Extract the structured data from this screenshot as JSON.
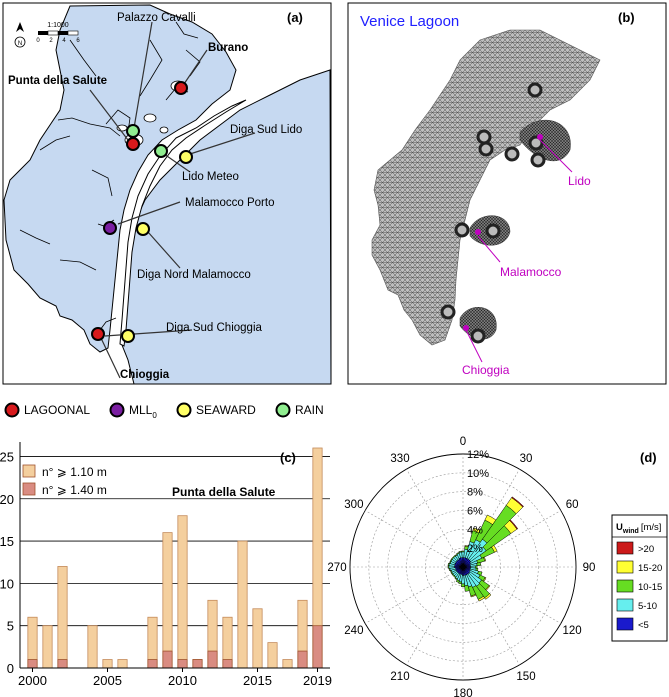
{
  "panel_a": {
    "label": "(a)",
    "scale_text": "1:1000",
    "scale_ticks": [
      "0",
      "2",
      "4",
      "6"
    ],
    "north": "N",
    "stations": [
      {
        "name": "Burano",
        "bold": true,
        "type": "lagoonal"
      },
      {
        "name": "Palazzo Cavalli",
        "bold": false,
        "type": "rain"
      },
      {
        "name": "Punta della Salute",
        "bold": true,
        "type": "lagoonal"
      },
      {
        "name": "Diga Sud Lido",
        "bold": false,
        "type": "seaward"
      },
      {
        "name": "Lido Meteo",
        "bold": false,
        "type": "rain"
      },
      {
        "name": "Malamocco Porto",
        "bold": false,
        "type": "mll0"
      },
      {
        "name": "Diga Nord Malamocco",
        "bold": false,
        "type": "seaward"
      },
      {
        "name": "Diga Sud Chioggia",
        "bold": false,
        "type": "seaward"
      },
      {
        "name": "Chioggia",
        "bold": true,
        "type": "lagoonal"
      }
    ]
  },
  "panel_b": {
    "label": "(b)",
    "title": "Venice Lagoon",
    "inlets": [
      "Lido",
      "Malamocco",
      "Chioggia"
    ]
  },
  "legend": [
    {
      "label": "LAGOONAL",
      "sub": "",
      "color": "#d7191c"
    },
    {
      "label": "MLL",
      "sub": "0",
      "color": "#7b1fa2"
    },
    {
      "label": "SEAWARD",
      "sub": "",
      "color": "#ffff66"
    },
    {
      "label": "RAIN",
      "sub": "",
      "color": "#90ee90"
    }
  ],
  "colors": {
    "water": "#c6d9f1",
    "outline": "#000000",
    "bar1": "#f4cf9e",
    "bar2": "#d98c82",
    "inlet_label": "#c000c0",
    "title_blue": "#2020ff"
  },
  "chart_data": [
    {
      "type": "bar",
      "label": "(c)",
      "title": "Punta della Salute",
      "categories": [
        "2000",
        "2001",
        "2002",
        "2003",
        "2004",
        "2005",
        "2006",
        "2007",
        "2008",
        "2009",
        "2010",
        "2011",
        "2012",
        "2013",
        "2014",
        "2015",
        "2016",
        "2017",
        "2018",
        "2019"
      ],
      "xtick_labels": [
        "2000",
        "2005",
        "2010",
        "2015",
        "2019"
      ],
      "ytick_labels": [
        "0",
        "5",
        "10",
        "15",
        "20",
        "25"
      ],
      "ylim": [
        0,
        26
      ],
      "grid": true,
      "legend_position": "top-left",
      "series": [
        {
          "name": "n° ⩾ 1.10 m",
          "values": [
            6,
            5,
            12,
            0,
            5,
            1,
            1,
            0,
            6,
            16,
            18,
            1,
            8,
            6,
            15,
            7,
            3,
            1,
            8,
            26
          ]
        },
        {
          "name": "n° ⩾ 1.40 m",
          "values": [
            1,
            0,
            1,
            0,
            0,
            0,
            0,
            0,
            1,
            2,
            1,
            1,
            2,
            1,
            0,
            0,
            0,
            0,
            2,
            5
          ]
        }
      ]
    },
    {
      "type": "polar-bar",
      "label": "(d)",
      "angle_labels": [
        "0",
        "30",
        "60",
        "90",
        "120",
        "150",
        "180",
        "210",
        "240",
        "270",
        "300",
        "330"
      ],
      "radial_labels": [
        "2%",
        "4%",
        "6%",
        "8%",
        "10%",
        "12%"
      ],
      "rmax": 12,
      "legend_title": "U",
      "legend_title_sub": "wind",
      "legend_unit": "[m/s]",
      "bins": [
        {
          "label": ">20",
          "color": "#cc1a1a"
        },
        {
          "label": "15-20",
          "color": "#ffff33"
        },
        {
          "label": "10-15",
          "color": "#66dd22"
        },
        {
          "label": "5-10",
          "color": "#66eeee"
        },
        {
          "label": "<5",
          "color": "#1a1acc"
        }
      ],
      "sectors": [
        {
          "dir": 0,
          "values": [
            0,
            0,
            0.1,
            0.6,
            1.0
          ]
        },
        {
          "dir": 10,
          "values": [
            0,
            0.1,
            0.3,
            0.9,
            1.0
          ]
        },
        {
          "dir": 20,
          "values": [
            0,
            0.3,
            1.2,
            1.8,
            1.0
          ]
        },
        {
          "dir": 30,
          "values": [
            0,
            0.6,
            2.3,
            2.2,
            1.0
          ]
        },
        {
          "dir": 40,
          "values": [
            0.1,
            1.0,
            4.4,
            2.6,
            1.0
          ]
        },
        {
          "dir": 50,
          "values": [
            0.1,
            0.8,
            3.2,
            2.0,
            1.0
          ]
        },
        {
          "dir": 60,
          "values": [
            0,
            0.3,
            1.5,
            1.3,
            0.9
          ]
        },
        {
          "dir": 70,
          "values": [
            0,
            0.1,
            0.8,
            0.8,
            0.8
          ]
        },
        {
          "dir": 80,
          "values": [
            0,
            0,
            0.4,
            0.7,
            0.8
          ]
        },
        {
          "dir": 90,
          "values": [
            0,
            0,
            0.2,
            0.5,
            0.8
          ]
        },
        {
          "dir": 100,
          "values": [
            0,
            0,
            0.2,
            0.6,
            0.8
          ]
        },
        {
          "dir": 110,
          "values": [
            0,
            0,
            0.4,
            0.9,
            0.8
          ]
        },
        {
          "dir": 120,
          "values": [
            0,
            0.1,
            0.6,
            1.2,
            0.8
          ]
        },
        {
          "dir": 130,
          "values": [
            0,
            0.1,
            1.0,
            1.5,
            0.9
          ]
        },
        {
          "dir": 140,
          "values": [
            0,
            0.2,
            1.5,
            1.6,
            0.9
          ]
        },
        {
          "dir": 150,
          "values": [
            0,
            0.2,
            1.4,
            1.5,
            0.9
          ]
        },
        {
          "dir": 160,
          "values": [
            0,
            0.1,
            1.0,
            1.3,
            0.9
          ]
        },
        {
          "dir": 170,
          "values": [
            0,
            0,
            0.6,
            1.1,
            0.9
          ]
        },
        {
          "dir": 180,
          "values": [
            0,
            0,
            0.3,
            0.9,
            0.9
          ]
        },
        {
          "dir": 190,
          "values": [
            0,
            0,
            0.2,
            0.8,
            0.8
          ]
        },
        {
          "dir": 200,
          "values": [
            0,
            0,
            0.2,
            0.7,
            0.8
          ]
        },
        {
          "dir": 210,
          "values": [
            0,
            0,
            0.1,
            0.6,
            0.8
          ]
        },
        {
          "dir": 220,
          "values": [
            0,
            0,
            0.1,
            0.5,
            0.8
          ]
        },
        {
          "dir": 230,
          "values": [
            0,
            0,
            0.1,
            0.5,
            0.8
          ]
        },
        {
          "dir": 240,
          "values": [
            0,
            0,
            0.1,
            0.5,
            0.8
          ]
        },
        {
          "dir": 250,
          "values": [
            0,
            0,
            0.1,
            0.5,
            0.8
          ]
        },
        {
          "dir": 260,
          "values": [
            0,
            0,
            0.1,
            0.6,
            0.8
          ]
        },
        {
          "dir": 270,
          "values": [
            0,
            0,
            0.1,
            0.6,
            0.9
          ]
        },
        {
          "dir": 280,
          "values": [
            0,
            0,
            0.1,
            0.6,
            0.9
          ]
        },
        {
          "dir": 290,
          "values": [
            0,
            0,
            0.1,
            0.5,
            0.9
          ]
        },
        {
          "dir": 300,
          "values": [
            0,
            0,
            0.1,
            0.5,
            0.9
          ]
        },
        {
          "dir": 310,
          "values": [
            0,
            0,
            0.1,
            0.5,
            0.9
          ]
        },
        {
          "dir": 320,
          "values": [
            0,
            0,
            0.1,
            0.5,
            0.9
          ]
        },
        {
          "dir": 330,
          "values": [
            0,
            0,
            0.1,
            0.5,
            0.9
          ]
        },
        {
          "dir": 340,
          "values": [
            0,
            0,
            0.1,
            0.5,
            1.0
          ]
        },
        {
          "dir": 350,
          "values": [
            0,
            0,
            0.1,
            0.6,
            1.0
          ]
        }
      ]
    }
  ]
}
